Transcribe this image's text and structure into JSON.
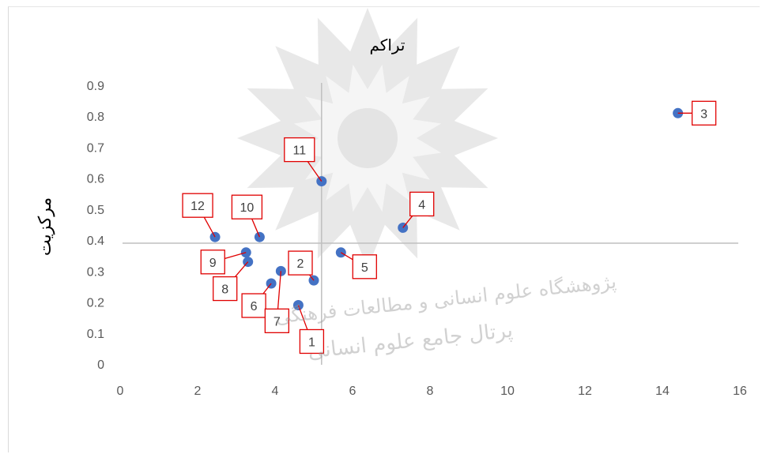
{
  "chart_data": {
    "type": "scatter",
    "title": "تراکم",
    "xlabel": "",
    "ylabel": "مرکزیت",
    "xlim": [
      0,
      16
    ],
    "ylim": [
      0,
      0.9
    ],
    "x_ticks": [
      "0",
      "2",
      "4",
      "6",
      "8",
      "10",
      "12",
      "14",
      "16"
    ],
    "y_ticks": [
      "0",
      "0.1",
      "0.2",
      "0.3",
      "0.4",
      "0.5",
      "0.6",
      "0.7",
      "0.8",
      "0.9"
    ],
    "crosshair": {
      "x": 5.2,
      "y": 0.39
    },
    "marker_color": "#4472c4",
    "callout_color": "#e00000",
    "points": [
      {
        "label": "1",
        "x": 4.6,
        "y": 0.19
      },
      {
        "label": "2",
        "x": 5.0,
        "y": 0.27
      },
      {
        "label": "3",
        "x": 14.4,
        "y": 0.81
      },
      {
        "label": "4",
        "x": 7.3,
        "y": 0.44
      },
      {
        "label": "5",
        "x": 5.7,
        "y": 0.36
      },
      {
        "label": "6",
        "x": 3.9,
        "y": 0.26
      },
      {
        "label": "7",
        "x": 4.15,
        "y": 0.3
      },
      {
        "label": "8",
        "x": 3.3,
        "y": 0.33
      },
      {
        "label": "9",
        "x": 3.25,
        "y": 0.36
      },
      {
        "label": "10",
        "x": 3.6,
        "y": 0.41
      },
      {
        "label": "11",
        "x": 5.2,
        "y": 0.59
      },
      {
        "label": "12",
        "x": 2.45,
        "y": 0.41
      }
    ]
  },
  "watermark": {
    "line1": "پژوهشگاه علوم انسانی و مطالعات فرهنگی",
    "line2": "پرتال جامع علوم انسانی"
  }
}
